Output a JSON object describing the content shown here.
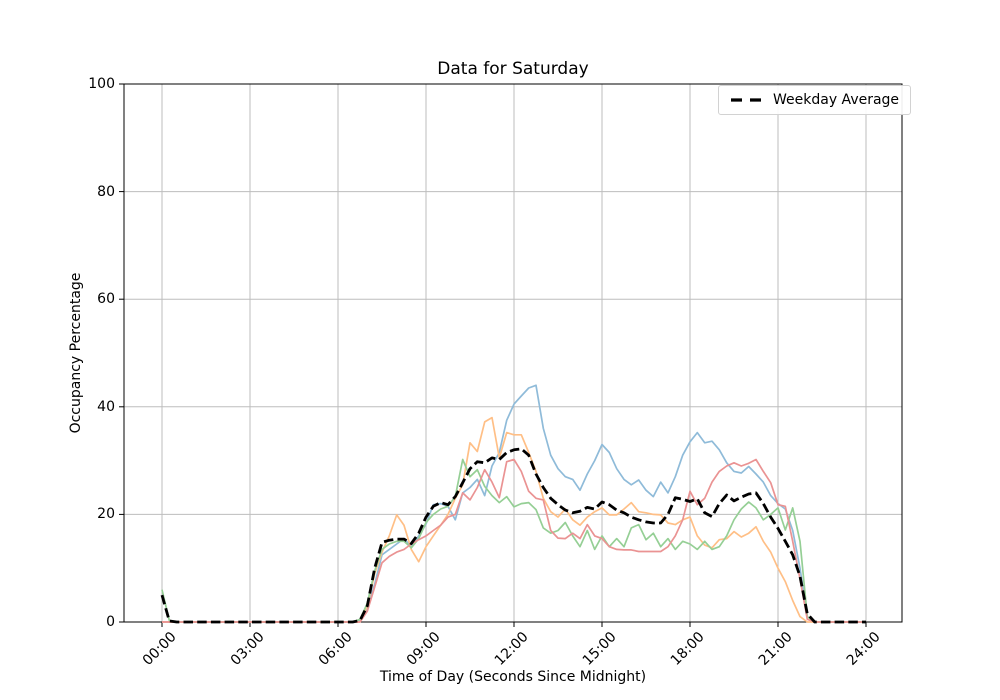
{
  "chart_data": {
    "type": "line",
    "title": "Data for Saturday",
    "xlabel": "Time of Day (Seconds Since Midnight)",
    "ylabel": "Occupancy Percentage",
    "grid": true,
    "ylim": [
      0,
      100
    ],
    "y_ticks": [
      0,
      20,
      40,
      60,
      80,
      100
    ],
    "x_tick_labels": [
      "00:00",
      "03:00",
      "06:00",
      "09:00",
      "12:00",
      "15:00",
      "18:00",
      "21:00",
      "24:00"
    ],
    "x_step_seconds": 900,
    "legend": {
      "position": "upper right",
      "entries": [
        {
          "label": "Weekday Average",
          "style": "dashed",
          "color": "#000000"
        }
      ]
    },
    "series": [
      {
        "id": "line_1",
        "color": "#8fbbd9",
        "dashed": false,
        "values": [
          0,
          0,
          0,
          0,
          0,
          0,
          0,
          0,
          0,
          0,
          0,
          0,
          0,
          0,
          0,
          0,
          0,
          0,
          0,
          0,
          0,
          0,
          0,
          0,
          0,
          0,
          0,
          0.2,
          2.5,
          7,
          12.5,
          13.5,
          14.5,
          15.5,
          14,
          16,
          18.2,
          21.8,
          22,
          21.5,
          19,
          24,
          25,
          26.5,
          23.5,
          29,
          31.5,
          37.5,
          40.5,
          42,
          43.5,
          44,
          36,
          31,
          28.5,
          27,
          26.5,
          24.5,
          27.5,
          30,
          33,
          31.5,
          28.5,
          26.5,
          25.5,
          26.4,
          24.5,
          23.3,
          26,
          24,
          27,
          31,
          33.5,
          35.2,
          33.3,
          33.6,
          32,
          29.6,
          28,
          27.7,
          28.9,
          27.5,
          26,
          23.5,
          22,
          21,
          17,
          10,
          1,
          0,
          0,
          0,
          0,
          0,
          0,
          0,
          0
        ]
      },
      {
        "id": "line_2",
        "color": "#ffbf86",
        "dashed": false,
        "values": [
          0,
          0,
          0,
          0,
          0,
          0,
          0,
          0,
          0,
          0,
          0,
          0,
          0,
          0,
          0,
          0,
          0,
          0,
          0,
          0,
          0,
          0,
          0,
          0,
          0,
          0,
          0,
          0,
          3,
          9,
          13,
          16,
          19.9,
          18,
          13.5,
          11.2,
          14,
          16,
          18,
          20,
          23,
          25.5,
          33.3,
          31.7,
          37.2,
          38,
          30.5,
          35.2,
          34.8,
          34.8,
          31.5,
          28,
          23,
          20.5,
          19.5,
          21,
          19,
          18,
          19.5,
          20.5,
          21.2,
          19.9,
          19.9,
          21,
          22.2,
          20.5,
          20.3,
          20,
          19.9,
          18.4,
          18.1,
          19,
          19.5,
          16,
          14.3,
          13.8,
          15.3,
          15.5,
          16.8,
          15.8,
          16.5,
          17.7,
          15,
          13,
          10,
          7.5,
          4,
          1,
          0,
          0,
          0,
          0,
          0,
          0,
          0,
          0,
          0
        ]
      },
      {
        "id": "line_3",
        "color": "#95cf95",
        "dashed": false,
        "values": [
          6,
          0.3,
          0,
          0,
          0,
          0,
          0,
          0,
          0,
          0,
          0,
          0,
          0,
          0,
          0,
          0,
          0,
          0,
          0,
          0,
          0,
          0,
          0,
          0,
          0,
          0,
          0,
          0.5,
          3.5,
          9.5,
          13.5,
          14.5,
          15,
          15,
          13.8,
          15.5,
          18.5,
          20,
          21,
          21.5,
          23.3,
          30.2,
          27,
          28.3,
          25.2,
          23.5,
          22.2,
          23.3,
          21.4,
          22,
          22.2,
          20.9,
          17.5,
          16.5,
          17,
          18.5,
          16,
          14,
          17,
          13.5,
          16,
          14,
          15.5,
          14,
          17.5,
          18.1,
          15.3,
          16.5,
          14,
          15.5,
          13.5,
          15,
          14.5,
          13.5,
          15,
          13.5,
          14,
          16,
          19,
          21,
          22.3,
          21.2,
          19,
          20,
          21.2,
          17.1,
          21.2,
          15,
          1,
          0,
          0,
          0,
          0,
          0,
          0,
          0,
          0
        ]
      },
      {
        "id": "line_4",
        "color": "#ea9393",
        "dashed": false,
        "values": [
          0,
          0,
          0,
          0,
          0,
          0,
          0,
          0,
          0,
          0,
          0,
          0,
          0,
          0,
          0,
          0,
          0,
          0,
          0,
          0,
          0,
          0,
          0,
          0,
          0,
          0,
          0,
          0,
          2,
          6.5,
          11,
          12.2,
          13,
          13.5,
          14.5,
          15.3,
          16,
          17,
          18,
          19.5,
          20,
          24,
          22.7,
          25,
          28.3,
          26,
          23.1,
          29.8,
          30.2,
          28,
          24.3,
          23,
          22.7,
          17,
          15.6,
          15.5,
          16.5,
          15.5,
          18.1,
          16,
          15.5,
          14,
          13.5,
          13.4,
          13.4,
          13.1,
          13.1,
          13.1,
          13.1,
          14,
          16,
          19,
          24.3,
          21.8,
          23,
          26,
          28,
          29,
          29.6,
          29,
          29.5,
          30.2,
          28,
          25.9,
          21.8,
          21.5,
          15,
          8,
          0.5,
          0,
          0,
          0,
          0,
          0,
          0,
          0,
          0
        ]
      },
      {
        "id": "weekday_average",
        "color": "#000000",
        "dashed": true,
        "values": [
          5,
          0.2,
          0,
          0,
          0,
          0,
          0,
          0,
          0,
          0,
          0,
          0,
          0,
          0,
          0,
          0,
          0,
          0,
          0,
          0,
          0,
          0,
          0,
          0,
          0,
          0,
          0,
          0.3,
          3,
          10,
          14.8,
          15.2,
          15.4,
          15.4,
          14.6,
          16.5,
          19.5,
          21.5,
          22.2,
          21.8,
          23.3,
          25.9,
          28.5,
          29.8,
          29.6,
          30.5,
          30.2,
          31.5,
          32,
          32.2,
          31,
          27.5,
          25,
          23,
          21.8,
          20.8,
          20.3,
          20.6,
          21.3,
          21,
          22.3,
          21.8,
          20.8,
          20.3,
          19.5,
          19,
          18.6,
          18.4,
          18.4,
          20,
          23.1,
          22.8,
          22.4,
          22.9,
          20.3,
          19.6,
          22,
          23.6,
          22.5,
          23.2,
          23.8,
          24,
          22,
          19.5,
          17.4,
          15,
          12.5,
          8.5,
          1.5,
          0,
          0,
          0,
          0,
          0,
          0,
          0,
          0
        ]
      }
    ],
    "colors": {
      "grid": "#bdbdbd",
      "spine": "#000000",
      "background": "#ffffff"
    }
  }
}
